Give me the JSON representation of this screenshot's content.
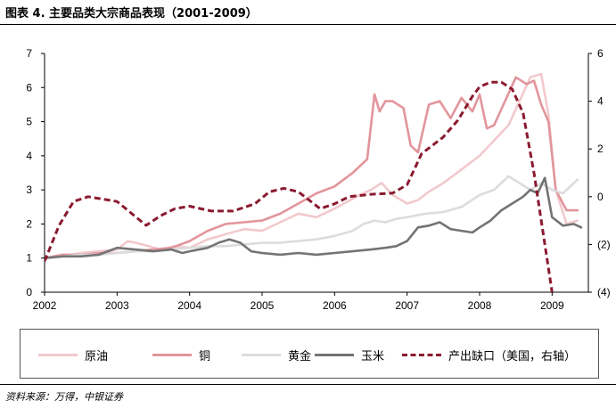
{
  "title": "图表 4. 主要品类大宗商品表现（2001-2009）",
  "source": "资料来源：万得，中银证券",
  "chart_data": {
    "type": "line",
    "x_ticks": [
      "2002",
      "2003",
      "2004",
      "2005",
      "2006",
      "2007",
      "2008",
      "2009"
    ],
    "x_range": [
      2002.0,
      2009.5
    ],
    "y_left": {
      "range": [
        0,
        7
      ],
      "ticks": [
        "0",
        "1",
        "2",
        "3",
        "4",
        "5",
        "6",
        "7"
      ]
    },
    "y_right": {
      "range": [
        -4,
        6
      ],
      "ticks": [
        "(4)",
        "(2)",
        "0",
        "2",
        "4",
        "6"
      ],
      "tick_values": [
        -4,
        -2,
        0,
        2,
        4,
        6
      ]
    },
    "grid": false,
    "legend_position": "bottom",
    "series": [
      {
        "name": "原油",
        "axis": "left",
        "color": "#f2c9cd",
        "dash": false,
        "x": [
          2002.0,
          2002.25,
          2002.5,
          2002.75,
          2003.0,
          2003.15,
          2003.35,
          2003.6,
          2003.8,
          2004.0,
          2004.25,
          2004.5,
          2004.75,
          2005.0,
          2005.25,
          2005.5,
          2005.75,
          2006.0,
          2006.3,
          2006.5,
          2006.65,
          2006.8,
          2007.0,
          2007.15,
          2007.3,
          2007.5,
          2007.75,
          2008.0,
          2008.2,
          2008.4,
          2008.55,
          2008.7,
          2008.85,
          2008.95,
          2009.05,
          2009.2,
          2009.35
        ],
        "y": [
          1.0,
          1.05,
          1.15,
          1.2,
          1.25,
          1.5,
          1.4,
          1.25,
          1.35,
          1.3,
          1.55,
          1.7,
          1.85,
          1.8,
          2.05,
          2.3,
          2.2,
          2.45,
          2.8,
          3.0,
          3.2,
          2.85,
          2.6,
          2.7,
          2.95,
          3.2,
          3.6,
          4.0,
          4.45,
          4.9,
          5.6,
          6.3,
          6.4,
          5.2,
          3.0,
          2.0,
          2.1
        ]
      },
      {
        "name": "铜",
        "axis": "left",
        "color": "#e2959c",
        "dash": false,
        "x": [
          2002.0,
          2002.25,
          2002.5,
          2002.75,
          2003.0,
          2003.25,
          2003.5,
          2003.75,
          2004.0,
          2004.25,
          2004.5,
          2004.75,
          2005.0,
          2005.25,
          2005.5,
          2005.75,
          2006.0,
          2006.25,
          2006.45,
          2006.55,
          2006.62,
          2006.7,
          2006.8,
          2006.95,
          2007.05,
          2007.15,
          2007.3,
          2007.45,
          2007.6,
          2007.75,
          2007.9,
          2008.0,
          2008.1,
          2008.2,
          2008.35,
          2008.5,
          2008.65,
          2008.75,
          2008.85,
          2008.95,
          2009.05,
          2009.2,
          2009.35
        ],
        "y": [
          1.0,
          1.1,
          1.1,
          1.15,
          1.15,
          1.2,
          1.25,
          1.3,
          1.5,
          1.8,
          2.0,
          2.05,
          2.1,
          2.3,
          2.6,
          2.9,
          3.1,
          3.5,
          3.9,
          5.8,
          5.3,
          5.6,
          5.6,
          5.4,
          4.3,
          4.1,
          5.5,
          5.6,
          5.1,
          5.7,
          5.3,
          5.8,
          4.8,
          4.9,
          5.6,
          6.3,
          6.1,
          6.2,
          5.5,
          5.0,
          3.0,
          2.4,
          2.4
        ]
      },
      {
        "name": "黄金",
        "axis": "left",
        "color": "#dcdcdc",
        "dash": false,
        "x": [
          2002.0,
          2002.25,
          2002.5,
          2002.75,
          2003.0,
          2003.25,
          2003.5,
          2003.75,
          2004.0,
          2004.25,
          2004.5,
          2004.75,
          2005.0,
          2005.25,
          2005.5,
          2005.75,
          2006.0,
          2006.25,
          2006.4,
          2006.55,
          2006.7,
          2006.85,
          2007.0,
          2007.25,
          2007.5,
          2007.75,
          2008.0,
          2008.2,
          2008.4,
          2008.55,
          2008.7,
          2008.85,
          2009.0,
          2009.15,
          2009.35
        ],
        "y": [
          1.0,
          1.05,
          1.1,
          1.1,
          1.15,
          1.2,
          1.2,
          1.25,
          1.3,
          1.35,
          1.35,
          1.4,
          1.45,
          1.45,
          1.5,
          1.55,
          1.65,
          1.8,
          2.0,
          2.1,
          2.05,
          2.15,
          2.2,
          2.3,
          2.35,
          2.5,
          2.85,
          3.0,
          3.4,
          3.2,
          3.0,
          3.2,
          3.0,
          2.9,
          3.3
        ]
      },
      {
        "name": "玉米",
        "axis": "left",
        "color": "#747474",
        "dash": false,
        "x": [
          2002.0,
          2002.25,
          2002.5,
          2002.75,
          2003.0,
          2003.25,
          2003.5,
          2003.75,
          2003.9,
          2004.0,
          2004.25,
          2004.4,
          2004.55,
          2004.7,
          2004.85,
          2005.0,
          2005.25,
          2005.5,
          2005.75,
          2006.0,
          2006.25,
          2006.5,
          2006.7,
          2006.85,
          2007.0,
          2007.15,
          2007.3,
          2007.45,
          2007.6,
          2007.75,
          2007.9,
          2008.0,
          2008.15,
          2008.3,
          2008.45,
          2008.6,
          2008.7,
          2008.8,
          2008.9,
          2009.0,
          2009.15,
          2009.3,
          2009.4
        ],
        "y": [
          1.0,
          1.05,
          1.05,
          1.1,
          1.3,
          1.25,
          1.2,
          1.25,
          1.15,
          1.2,
          1.3,
          1.45,
          1.55,
          1.45,
          1.2,
          1.15,
          1.1,
          1.15,
          1.1,
          1.15,
          1.2,
          1.25,
          1.3,
          1.35,
          1.5,
          1.9,
          1.95,
          2.05,
          1.85,
          1.8,
          1.75,
          1.9,
          2.1,
          2.4,
          2.6,
          2.8,
          3.0,
          2.9,
          3.35,
          2.2,
          1.95,
          2.0,
          1.9
        ]
      },
      {
        "name": "产出缺口（美国，右轴）",
        "axis": "right",
        "color": "#8b1a2f",
        "dash": true,
        "x": [
          2002.0,
          2002.2,
          2002.4,
          2002.6,
          2002.8,
          2003.0,
          2003.2,
          2003.4,
          2003.6,
          2003.8,
          2004.0,
          2004.3,
          2004.6,
          2004.9,
          2005.1,
          2005.3,
          2005.5,
          2005.8,
          2006.0,
          2006.2,
          2006.5,
          2006.8,
          2007.0,
          2007.2,
          2007.5,
          2007.7,
          2007.9,
          2008.0,
          2008.15,
          2008.3,
          2008.45,
          2008.6,
          2008.75,
          2008.9,
          2009.0
        ],
        "y": [
          -2.7,
          -1.2,
          -0.2,
          0.0,
          -0.1,
          -0.2,
          -0.7,
          -1.2,
          -0.8,
          -0.5,
          -0.4,
          -0.6,
          -0.6,
          -0.3,
          0.2,
          0.35,
          0.2,
          -0.5,
          -0.3,
          0.0,
          0.1,
          0.15,
          0.5,
          1.8,
          2.5,
          3.2,
          4.2,
          4.6,
          4.8,
          4.8,
          4.5,
          3.5,
          1.0,
          -2.0,
          -4.0
        ]
      }
    ]
  }
}
